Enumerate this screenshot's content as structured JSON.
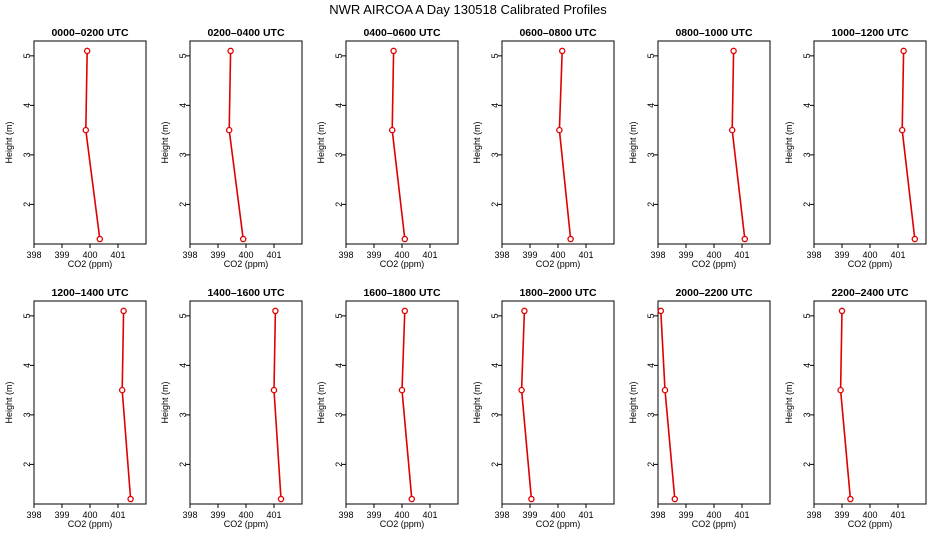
{
  "figure_title": "NWR AIRCOA A  Day 130518  Calibrated Profiles",
  "colors": {
    "series": "#e00000",
    "axis": "#000000",
    "background": "#ffffff"
  },
  "chart_data": [
    {
      "type": "line",
      "title": "0000–0200 UTC",
      "xlabel": "CO2 (ppm)",
      "ylabel": "Height (m)",
      "xlim": [
        398,
        402
      ],
      "ylim": [
        1.2,
        5.3
      ],
      "xticks": [
        "398",
        "399",
        "400",
        "401"
      ],
      "yticks": [
        "2",
        "3",
        "4",
        "5"
      ],
      "x": [
        399.9,
        399.85,
        400.35
      ],
      "y": [
        5.1,
        3.5,
        1.3
      ]
    },
    {
      "type": "line",
      "title": "0200–0400 UTC",
      "xlabel": "CO2 (ppm)",
      "ylabel": "Height (m)",
      "xlim": [
        398,
        402
      ],
      "ylim": [
        1.2,
        5.3
      ],
      "xticks": [
        "398",
        "399",
        "400",
        "401"
      ],
      "yticks": [
        "2",
        "3",
        "4",
        "5"
      ],
      "x": [
        399.45,
        399.4,
        399.9
      ],
      "y": [
        5.1,
        3.5,
        1.3
      ]
    },
    {
      "type": "line",
      "title": "0400–0600 UTC",
      "xlabel": "CO2 (ppm)",
      "ylabel": "Height (m)",
      "xlim": [
        398,
        402
      ],
      "ylim": [
        1.2,
        5.3
      ],
      "xticks": [
        "398",
        "399",
        "400",
        "401"
      ],
      "yticks": [
        "2",
        "3",
        "4",
        "5"
      ],
      "x": [
        399.7,
        399.65,
        400.1
      ],
      "y": [
        5.1,
        3.5,
        1.3
      ]
    },
    {
      "type": "line",
      "title": "0600–0800 UTC",
      "xlabel": "CO2 (ppm)",
      "ylabel": "Height (m)",
      "xlim": [
        398,
        402
      ],
      "ylim": [
        1.2,
        5.3
      ],
      "xticks": [
        "398",
        "399",
        "400",
        "401"
      ],
      "yticks": [
        "2",
        "3",
        "4",
        "5"
      ],
      "x": [
        400.15,
        400.05,
        400.45
      ],
      "y": [
        5.1,
        3.5,
        1.3
      ]
    },
    {
      "type": "line",
      "title": "0800–1000 UTC",
      "xlabel": "CO2 (ppm)",
      "ylabel": "Height (m)",
      "xlim": [
        398,
        402
      ],
      "ylim": [
        1.2,
        5.3
      ],
      "xticks": [
        "398",
        "399",
        "400",
        "401"
      ],
      "yticks": [
        "2",
        "3",
        "4",
        "5"
      ],
      "x": [
        400.7,
        400.65,
        401.1
      ],
      "y": [
        5.1,
        3.5,
        1.3
      ]
    },
    {
      "type": "line",
      "title": "1000–1200 UTC",
      "xlabel": "CO2 (ppm)",
      "ylabel": "Height (m)",
      "xlim": [
        398,
        402
      ],
      "ylim": [
        1.2,
        5.3
      ],
      "xticks": [
        "398",
        "399",
        "400",
        "401"
      ],
      "yticks": [
        "2",
        "3",
        "4",
        "5"
      ],
      "x": [
        401.2,
        401.15,
        401.6
      ],
      "y": [
        5.1,
        3.5,
        1.3
      ]
    },
    {
      "type": "line",
      "title": "1200–1400 UTC",
      "xlabel": "CO2 (ppm)",
      "ylabel": "Height (m)",
      "xlim": [
        398,
        402
      ],
      "ylim": [
        1.2,
        5.3
      ],
      "xticks": [
        "398",
        "399",
        "400",
        "401"
      ],
      "yticks": [
        "2",
        "3",
        "4",
        "5"
      ],
      "x": [
        401.2,
        401.15,
        401.45
      ],
      "y": [
        5.1,
        3.5,
        1.3
      ]
    },
    {
      "type": "line",
      "title": "1400–1600 UTC",
      "xlabel": "CO2 (ppm)",
      "ylabel": "Height (m)",
      "xlim": [
        398,
        402
      ],
      "ylim": [
        1.2,
        5.3
      ],
      "xticks": [
        "398",
        "399",
        "400",
        "401"
      ],
      "yticks": [
        "2",
        "3",
        "4",
        "5"
      ],
      "x": [
        401.05,
        401.0,
        401.25
      ],
      "y": [
        5.1,
        3.5,
        1.3
      ]
    },
    {
      "type": "line",
      "title": "1600–1800 UTC",
      "xlabel": "CO2 (ppm)",
      "ylabel": "Height (m)",
      "xlim": [
        398,
        402
      ],
      "ylim": [
        1.2,
        5.3
      ],
      "xticks": [
        "398",
        "399",
        "400",
        "401"
      ],
      "yticks": [
        "2",
        "3",
        "4",
        "5"
      ],
      "x": [
        400.1,
        400.0,
        400.35
      ],
      "y": [
        5.1,
        3.5,
        1.3
      ]
    },
    {
      "type": "line",
      "title": "1800–2000 UTC",
      "xlabel": "CO2 (ppm)",
      "ylabel": "Height (m)",
      "xlim": [
        398,
        402
      ],
      "ylim": [
        1.2,
        5.3
      ],
      "xticks": [
        "398",
        "399",
        "400",
        "401"
      ],
      "yticks": [
        "2",
        "3",
        "4",
        "5"
      ],
      "x": [
        398.8,
        398.7,
        399.05
      ],
      "y": [
        5.1,
        3.5,
        1.3
      ]
    },
    {
      "type": "line",
      "title": "2000–2200 UTC",
      "xlabel": "CO2 (ppm)",
      "ylabel": "Height (m)",
      "xlim": [
        398,
        402
      ],
      "ylim": [
        1.2,
        5.3
      ],
      "xticks": [
        "398",
        "399",
        "400",
        "401"
      ],
      "yticks": [
        "2",
        "3",
        "4",
        "5"
      ],
      "x": [
        398.1,
        398.25,
        398.6
      ],
      "y": [
        5.1,
        3.5,
        1.3
      ]
    },
    {
      "type": "line",
      "title": "2200–2400 UTC",
      "xlabel": "CO2 (ppm)",
      "ylabel": "Height (m)",
      "xlim": [
        398,
        402
      ],
      "ylim": [
        1.2,
        5.3
      ],
      "xticks": [
        "398",
        "399",
        "400",
        "401"
      ],
      "yticks": [
        "2",
        "3",
        "4",
        "5"
      ],
      "x": [
        399.0,
        398.95,
        399.3
      ],
      "y": [
        5.1,
        3.5,
        1.3
      ]
    }
  ]
}
